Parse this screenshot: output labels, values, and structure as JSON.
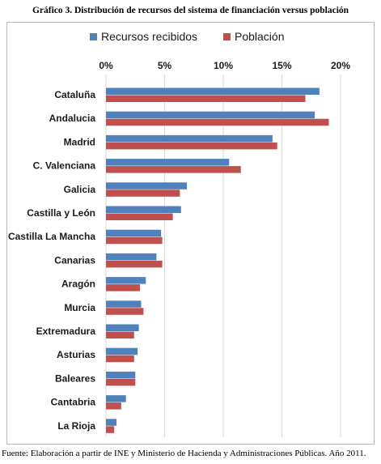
{
  "title": "Gráfico 3. Distribución de recursos del sistema de financiación versus población",
  "source": "Fuente: Elaboración a partir de INE y Ministerio de Hacienda y Administraciones Públicas. Año 2011.",
  "colors": {
    "recursos": "#4f81bd",
    "poblacion": "#c0504d",
    "grid": "#d9d9d9"
  },
  "chart_data": {
    "type": "bar",
    "orientation": "horizontal",
    "categories": [
      "Cataluña",
      "Andalucia",
      "Madrid",
      "C. Valenciana",
      "Galicia",
      "Castilla y León",
      "Castilla La Mancha",
      "Canarias",
      "Aragón",
      "Murcia",
      "Extremadura",
      "Asturias",
      "Baleares",
      "Cantabria",
      "La Rioja"
    ],
    "series": [
      {
        "name": "Recursos recibidos",
        "values": [
          18.2,
          17.8,
          14.2,
          10.5,
          6.9,
          6.4,
          4.7,
          4.3,
          3.4,
          3.0,
          2.8,
          2.7,
          2.5,
          1.7,
          0.9
        ]
      },
      {
        "name": "Población",
        "values": [
          17.0,
          19.0,
          14.6,
          11.5,
          6.3,
          5.7,
          4.8,
          4.8,
          2.9,
          3.2,
          2.4,
          2.4,
          2.5,
          1.3,
          0.7
        ]
      }
    ],
    "xlim": [
      0,
      20
    ],
    "ticks": [
      "0%",
      "5%",
      "10%",
      "15%",
      "20%"
    ],
    "legend_position": "top",
    "grid": true
  }
}
